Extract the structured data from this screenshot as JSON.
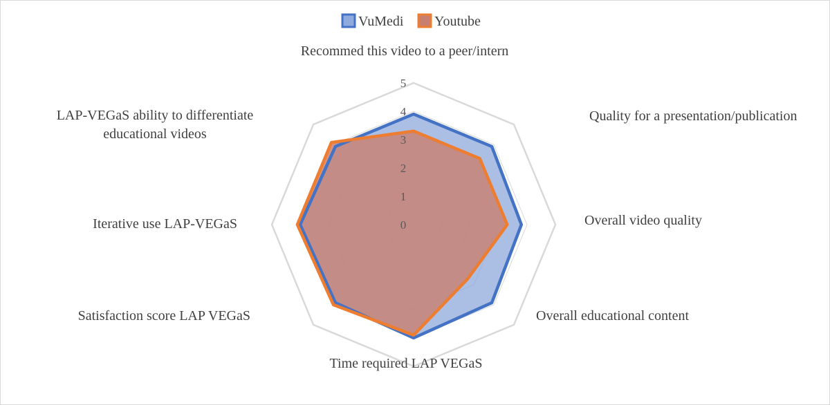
{
  "chart_data": {
    "type": "radar",
    "categories": [
      "Recommed this video to a peer/intern",
      "Quality for a presentation/publication",
      "Overall video quality",
      "Overall educational content",
      "Time required LAP VEGaS",
      "Satisfaction score LAP VEGaS",
      "Iterative use LAP-VEGaS",
      [
        "LAP-VEGaS ability to differentiate",
        "educational videos"
      ]
    ],
    "series": [
      {
        "name": "VuMedi",
        "color": "#4472C4",
        "fill": "#8FAADC",
        "values": [
          3.9,
          3.9,
          3.8,
          3.9,
          4.0,
          3.9,
          4.0,
          3.9
        ]
      },
      {
        "name": "Youtube",
        "color": "#ED7D31",
        "fill": "#C97F6F",
        "values": [
          3.3,
          3.3,
          3.3,
          2.7,
          3.9,
          4.0,
          4.1,
          4.1
        ]
      }
    ],
    "r_ticks": [
      0,
      1,
      2,
      3,
      4,
      5
    ],
    "r_range": [
      0,
      5
    ],
    "legend_position": "top",
    "gridlines": true
  }
}
